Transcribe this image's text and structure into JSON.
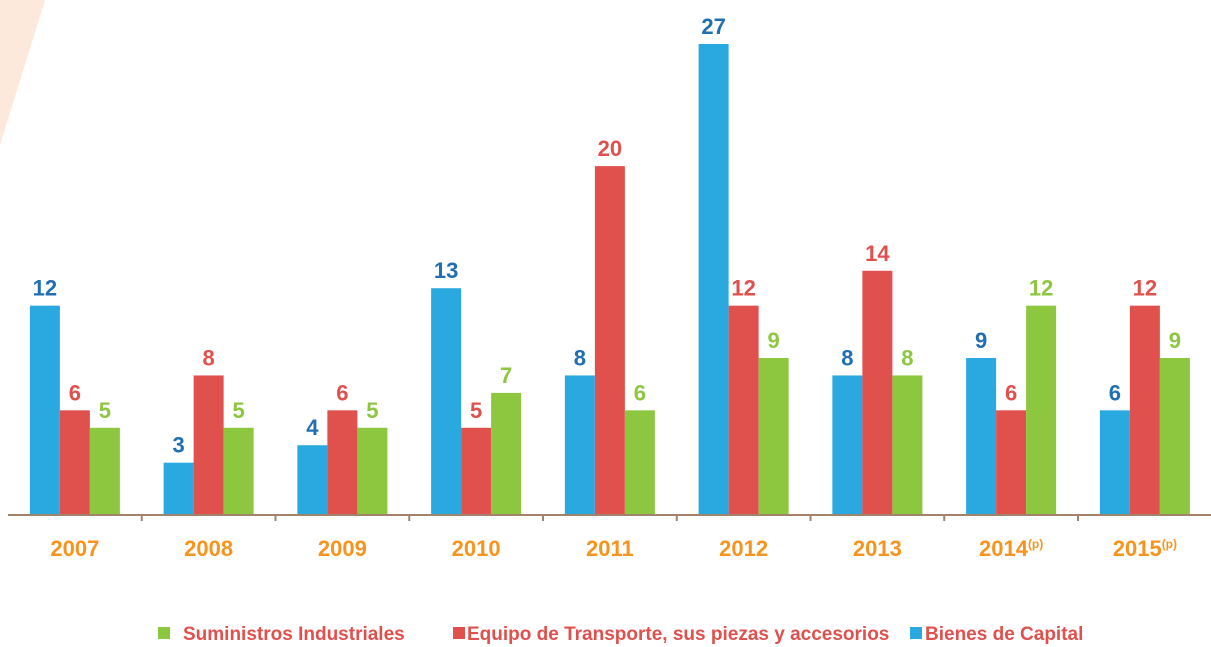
{
  "chart_data": {
    "type": "bar",
    "categories": [
      "2007",
      "2008",
      "2009",
      "2010",
      "2011",
      "2012",
      "2013",
      "2014(p)",
      "2015(p)"
    ],
    "series": [
      {
        "name": "Bienes  de Capital",
        "color": "#29a9e0",
        "label_color": "#1f6fb2",
        "values": [
          12,
          3,
          4,
          13,
          8,
          27,
          8,
          9,
          6
        ]
      },
      {
        "name": "Equipo de Transporte, sus piezas y accesorios",
        "color": "#e0504d",
        "label_color": "#e0504d",
        "values": [
          6,
          8,
          6,
          5,
          20,
          12,
          14,
          6,
          12
        ]
      },
      {
        "name": "Suministros Industriales",
        "color": "#8dc63f",
        "label_color": "#8dc63f",
        "values": [
          5,
          5,
          5,
          7,
          6,
          9,
          8,
          12,
          9
        ]
      }
    ],
    "ylim": [
      0,
      27
    ],
    "grid": false
  }
}
